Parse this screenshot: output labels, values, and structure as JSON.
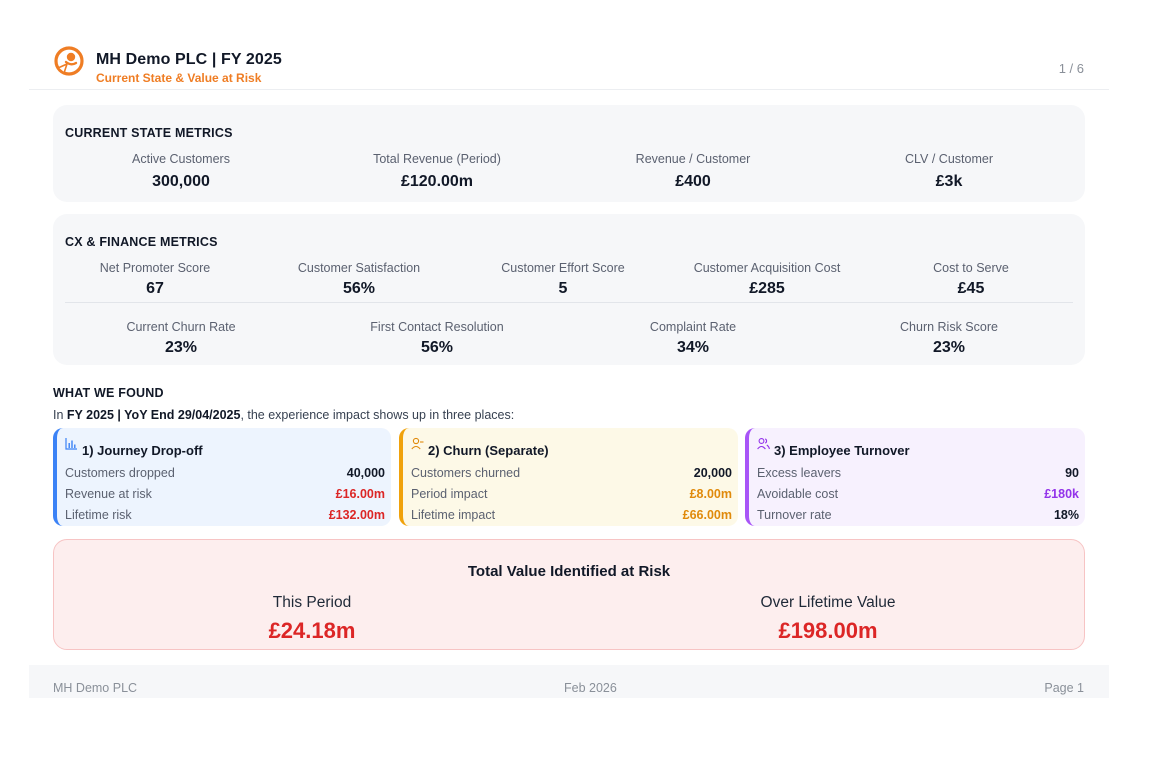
{
  "header": {
    "title": "MH Demo PLC | FY 2025",
    "subtitle": "Current State & Value at Risk",
    "page_indicator": "1 / 6",
    "brand_color": "#ef7d24"
  },
  "current_state": {
    "heading": "CURRENT STATE METRICS",
    "metrics": [
      {
        "label": "Active Customers",
        "value": "300,000"
      },
      {
        "label": "Total Revenue (Period)",
        "value": "£120.00m"
      },
      {
        "label": "Revenue / Customer",
        "value": "£400"
      },
      {
        "label": "CLV / Customer",
        "value": "£3k"
      }
    ]
  },
  "cx_finance": {
    "heading": "CX & FINANCE METRICS",
    "row1": [
      {
        "label": "Net Promoter Score",
        "value": "67"
      },
      {
        "label": "Customer Satisfaction",
        "value": "56%"
      },
      {
        "label": "Customer Effort Score",
        "value": "5"
      },
      {
        "label": "Customer Acquisition Cost",
        "value": "£285"
      },
      {
        "label": "Cost to Serve",
        "value": "£45"
      }
    ],
    "row2": [
      {
        "label": "Current Churn Rate",
        "value": "23%"
      },
      {
        "label": "First Contact Resolution",
        "value": "56%"
      },
      {
        "label": "Complaint Rate",
        "value": "34%"
      },
      {
        "label": "Churn Risk Score",
        "value": "23%"
      }
    ]
  },
  "what_we_found": {
    "heading": "WHAT WE FOUND",
    "intro_prefix": "In ",
    "intro_bold": "FY 2025 | YoY End 29/04/2025",
    "intro_suffix": ", the experience impact shows up in three places:",
    "cards": [
      {
        "title": "1) Journey Drop-off",
        "icon": "bar-chart-icon",
        "accent": "#3b82f6",
        "rows": [
          {
            "label": "Customers dropped",
            "value": "40,000"
          },
          {
            "label": "Revenue at risk",
            "value": "£16.00m"
          },
          {
            "label": "Lifetime risk",
            "value": "£132.00m"
          }
        ]
      },
      {
        "title": "2) Churn (Separate)",
        "icon": "user-minus-icon",
        "accent": "#f0a20c",
        "rows": [
          {
            "label": "Customers churned",
            "value": "20,000"
          },
          {
            "label": "Period impact",
            "value": "£8.00m"
          },
          {
            "label": "Lifetime impact",
            "value": "£66.00m"
          }
        ]
      },
      {
        "title": "3) Employee Turnover",
        "icon": "users-icon",
        "accent": "#a855f7",
        "rows": [
          {
            "label": "Excess leavers",
            "value": "90"
          },
          {
            "label": "Avoidable cost",
            "value": "£180k"
          },
          {
            "label": "Turnover rate",
            "value": "18%"
          }
        ]
      }
    ]
  },
  "total": {
    "heading": "Total Value Identified at Risk",
    "period_label": "This Period",
    "period_value": "£24.18m",
    "lifetime_label": "Over Lifetime Value",
    "lifetime_value": "£198.00m",
    "accent": "#dc2626"
  },
  "footer": {
    "company": "MH Demo PLC",
    "date": "Feb 2026",
    "page": "Page 1"
  }
}
